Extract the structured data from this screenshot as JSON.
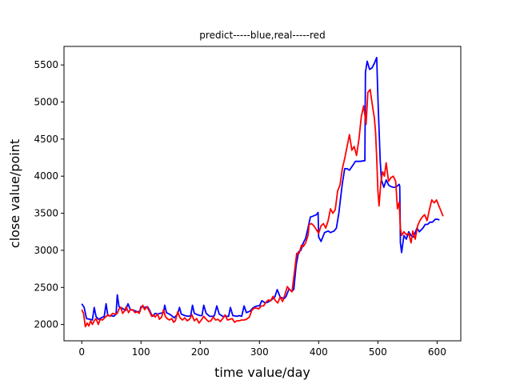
{
  "chart_data": {
    "type": "line",
    "title": "predict-----blue,real-----red",
    "xlabel": "time value/day",
    "ylabel": "close value/point",
    "xlim": [
      -30,
      640
    ],
    "ylim": [
      1780,
      5750
    ],
    "xticks": [
      0,
      100,
      200,
      300,
      400,
      500,
      600
    ],
    "yticks": [
      2000,
      2500,
      3000,
      3500,
      4000,
      4500,
      5000,
      5500
    ],
    "grid": false,
    "legend": "none",
    "series": [
      {
        "color": "#0000ff",
        "points": [
          [
            0,
            2280
          ],
          [
            4,
            2230
          ],
          [
            8,
            2080
          ],
          [
            14,
            2070
          ],
          [
            18,
            2060
          ],
          [
            21,
            2230
          ],
          [
            24,
            2110
          ],
          [
            28,
            2070
          ],
          [
            33,
            2090
          ],
          [
            38,
            2110
          ],
          [
            41,
            2280
          ],
          [
            44,
            2120
          ],
          [
            50,
            2120
          ],
          [
            54,
            2110
          ],
          [
            58,
            2140
          ],
          [
            60,
            2400
          ],
          [
            63,
            2240
          ],
          [
            68,
            2220
          ],
          [
            74,
            2190
          ],
          [
            78,
            2280
          ],
          [
            82,
            2200
          ],
          [
            88,
            2190
          ],
          [
            94,
            2170
          ],
          [
            98,
            2180
          ],
          [
            100,
            2240
          ],
          [
            106,
            2230
          ],
          [
            111,
            2240
          ],
          [
            114,
            2200
          ],
          [
            118,
            2130
          ],
          [
            120,
            2110
          ],
          [
            124,
            2150
          ],
          [
            128,
            2140
          ],
          [
            132,
            2150
          ],
          [
            138,
            2160
          ],
          [
            140,
            2260
          ],
          [
            143,
            2160
          ],
          [
            150,
            2130
          ],
          [
            156,
            2090
          ],
          [
            162,
            2140
          ],
          [
            165,
            2230
          ],
          [
            168,
            2140
          ],
          [
            174,
            2120
          ],
          [
            180,
            2110
          ],
          [
            184,
            2120
          ],
          [
            187,
            2260
          ],
          [
            190,
            2150
          ],
          [
            196,
            2130
          ],
          [
            200,
            2120
          ],
          [
            203,
            2120
          ],
          [
            206,
            2260
          ],
          [
            210,
            2150
          ],
          [
            216,
            2110
          ],
          [
            221,
            2110
          ],
          [
            224,
            2120
          ],
          [
            228,
            2250
          ],
          [
            232,
            2140
          ],
          [
            238,
            2110
          ],
          [
            244,
            2110
          ],
          [
            248,
            2110
          ],
          [
            251,
            2230
          ],
          [
            255,
            2120
          ],
          [
            262,
            2110
          ],
          [
            266,
            2120
          ],
          [
            270,
            2110
          ],
          [
            274,
            2250
          ],
          [
            278,
            2160
          ],
          [
            284,
            2180
          ],
          [
            290,
            2230
          ],
          [
            296,
            2250
          ],
          [
            300,
            2250
          ],
          [
            304,
            2320
          ],
          [
            310,
            2290
          ],
          [
            314,
            2300
          ],
          [
            320,
            2330
          ],
          [
            326,
            2370
          ],
          [
            330,
            2470
          ],
          [
            335,
            2370
          ],
          [
            338,
            2360
          ],
          [
            342,
            2350
          ],
          [
            345,
            2380
          ],
          [
            350,
            2480
          ],
          [
            354,
            2450
          ],
          [
            358,
            2470
          ],
          [
            362,
            2800
          ],
          [
            366,
            2980
          ],
          [
            370,
            3000
          ],
          [
            374,
            3100
          ],
          [
            378,
            3160
          ],
          [
            382,
            3300
          ],
          [
            386,
            3450
          ],
          [
            390,
            3460
          ],
          [
            396,
            3480
          ],
          [
            399,
            3510
          ],
          [
            400,
            3180
          ],
          [
            404,
            3120
          ],
          [
            410,
            3240
          ],
          [
            416,
            3260
          ],
          [
            420,
            3240
          ],
          [
            426,
            3260
          ],
          [
            430,
            3300
          ],
          [
            434,
            3500
          ],
          [
            440,
            3900
          ],
          [
            444,
            4100
          ],
          [
            448,
            4100
          ],
          [
            452,
            4080
          ],
          [
            458,
            4150
          ],
          [
            462,
            4200
          ],
          [
            470,
            4200
          ],
          [
            478,
            4210
          ],
          [
            479,
            5400
          ],
          [
            482,
            5550
          ],
          [
            486,
            5440
          ],
          [
            490,
            5460
          ],
          [
            494,
            5520
          ],
          [
            498,
            5600
          ],
          [
            500,
            5050
          ],
          [
            504,
            4200
          ],
          [
            506,
            3950
          ],
          [
            510,
            3850
          ],
          [
            514,
            3950
          ],
          [
            518,
            3880
          ],
          [
            522,
            3860
          ],
          [
            526,
            3850
          ],
          [
            530,
            3850
          ],
          [
            536,
            3890
          ],
          [
            537,
            3860
          ],
          [
            538,
            3100
          ],
          [
            540,
            2970
          ],
          [
            544,
            3200
          ],
          [
            548,
            3150
          ],
          [
            552,
            3250
          ],
          [
            556,
            3200
          ],
          [
            560,
            3180
          ],
          [
            566,
            3300
          ],
          [
            570,
            3250
          ],
          [
            576,
            3300
          ],
          [
            580,
            3350
          ],
          [
            584,
            3350
          ],
          [
            588,
            3380
          ],
          [
            592,
            3380
          ],
          [
            597,
            3420
          ],
          [
            600,
            3420
          ],
          [
            604,
            3410
          ]
        ]
      },
      {
        "color": "#ff0000",
        "points": [
          [
            0,
            2200
          ],
          [
            3,
            2150
          ],
          [
            6,
            1970
          ],
          [
            9,
            2020
          ],
          [
            12,
            1980
          ],
          [
            15,
            2050
          ],
          [
            18,
            2000
          ],
          [
            21,
            2050
          ],
          [
            24,
            2080
          ],
          [
            28,
            2000
          ],
          [
            31,
            2070
          ],
          [
            35,
            2060
          ],
          [
            40,
            2100
          ],
          [
            44,
            2130
          ],
          [
            48,
            2110
          ],
          [
            52,
            2150
          ],
          [
            56,
            2140
          ],
          [
            60,
            2150
          ],
          [
            63,
            2210
          ],
          [
            66,
            2230
          ],
          [
            69,
            2150
          ],
          [
            72,
            2180
          ],
          [
            75,
            2240
          ],
          [
            79,
            2160
          ],
          [
            82,
            2200
          ],
          [
            86,
            2200
          ],
          [
            90,
            2160
          ],
          [
            94,
            2170
          ],
          [
            97,
            2150
          ],
          [
            100,
            2220
          ],
          [
            103,
            2260
          ],
          [
            106,
            2200
          ],
          [
            110,
            2240
          ],
          [
            114,
            2180
          ],
          [
            118,
            2110
          ],
          [
            121,
            2130
          ],
          [
            124,
            2100
          ],
          [
            128,
            2140
          ],
          [
            131,
            2070
          ],
          [
            135,
            2100
          ],
          [
            138,
            2200
          ],
          [
            141,
            2110
          ],
          [
            144,
            2080
          ],
          [
            148,
            2060
          ],
          [
            152,
            2080
          ],
          [
            155,
            2030
          ],
          [
            158,
            2050
          ],
          [
            162,
            2170
          ],
          [
            166,
            2090
          ],
          [
            170,
            2060
          ],
          [
            174,
            2090
          ],
          [
            178,
            2050
          ],
          [
            182,
            2070
          ],
          [
            186,
            2130
          ],
          [
            190,
            2050
          ],
          [
            194,
            2080
          ],
          [
            198,
            2020
          ],
          [
            202,
            2060
          ],
          [
            206,
            2110
          ],
          [
            210,
            2070
          ],
          [
            214,
            2040
          ],
          [
            218,
            2050
          ],
          [
            222,
            2100
          ],
          [
            226,
            2060
          ],
          [
            230,
            2070
          ],
          [
            234,
            2040
          ],
          [
            238,
            2080
          ],
          [
            242,
            2130
          ],
          [
            246,
            2060
          ],
          [
            250,
            2070
          ],
          [
            254,
            2080
          ],
          [
            258,
            2030
          ],
          [
            262,
            2050
          ],
          [
            266,
            2050
          ],
          [
            270,
            2060
          ],
          [
            274,
            2060
          ],
          [
            278,
            2070
          ],
          [
            283,
            2100
          ],
          [
            287,
            2190
          ],
          [
            291,
            2220
          ],
          [
            295,
            2220
          ],
          [
            299,
            2210
          ],
          [
            303,
            2250
          ],
          [
            307,
            2250
          ],
          [
            311,
            2300
          ],
          [
            315,
            2330
          ],
          [
            319,
            2320
          ],
          [
            323,
            2380
          ],
          [
            327,
            2320
          ],
          [
            331,
            2290
          ],
          [
            335,
            2370
          ],
          [
            339,
            2310
          ],
          [
            343,
            2400
          ],
          [
            347,
            2510
          ],
          [
            351,
            2470
          ],
          [
            355,
            2440
          ],
          [
            359,
            2700
          ],
          [
            363,
            2960
          ],
          [
            367,
            2960
          ],
          [
            371,
            3070
          ],
          [
            374,
            3050
          ],
          [
            378,
            3100
          ],
          [
            382,
            3200
          ],
          [
            384,
            3350
          ],
          [
            388,
            3360
          ],
          [
            392,
            3330
          ],
          [
            396,
            3280
          ],
          [
            400,
            3230
          ],
          [
            404,
            3330
          ],
          [
            408,
            3360
          ],
          [
            412,
            3300
          ],
          [
            416,
            3400
          ],
          [
            420,
            3560
          ],
          [
            424,
            3500
          ],
          [
            428,
            3550
          ],
          [
            432,
            3800
          ],
          [
            436,
            3880
          ],
          [
            440,
            4100
          ],
          [
            444,
            4240
          ],
          [
            448,
            4400
          ],
          [
            452,
            4560
          ],
          [
            456,
            4350
          ],
          [
            460,
            4400
          ],
          [
            464,
            4280
          ],
          [
            468,
            4500
          ],
          [
            472,
            4800
          ],
          [
            476,
            4950
          ],
          [
            480,
            4700
          ],
          [
            483,
            5130
          ],
          [
            487,
            5170
          ],
          [
            490,
            4990
          ],
          [
            494,
            4790
          ],
          [
            496,
            4600
          ],
          [
            498,
            4240
          ],
          [
            500,
            3800
          ],
          [
            502,
            3600
          ],
          [
            505,
            3920
          ],
          [
            508,
            4060
          ],
          [
            511,
            4000
          ],
          [
            514,
            4180
          ],
          [
            518,
            3930
          ],
          [
            522,
            3980
          ],
          [
            526,
            4000
          ],
          [
            530,
            3930
          ],
          [
            533,
            3560
          ],
          [
            536,
            3650
          ],
          [
            538,
            3300
          ],
          [
            540,
            3200
          ],
          [
            544,
            3250
          ],
          [
            548,
            3210
          ],
          [
            552,
            3230
          ],
          [
            556,
            3100
          ],
          [
            559,
            3260
          ],
          [
            563,
            3150
          ],
          [
            567,
            3330
          ],
          [
            571,
            3400
          ],
          [
            575,
            3450
          ],
          [
            579,
            3480
          ],
          [
            583,
            3400
          ],
          [
            587,
            3550
          ],
          [
            591,
            3680
          ],
          [
            595,
            3640
          ],
          [
            599,
            3680
          ],
          [
            603,
            3600
          ],
          [
            607,
            3520
          ],
          [
            610,
            3460
          ]
        ]
      }
    ]
  }
}
